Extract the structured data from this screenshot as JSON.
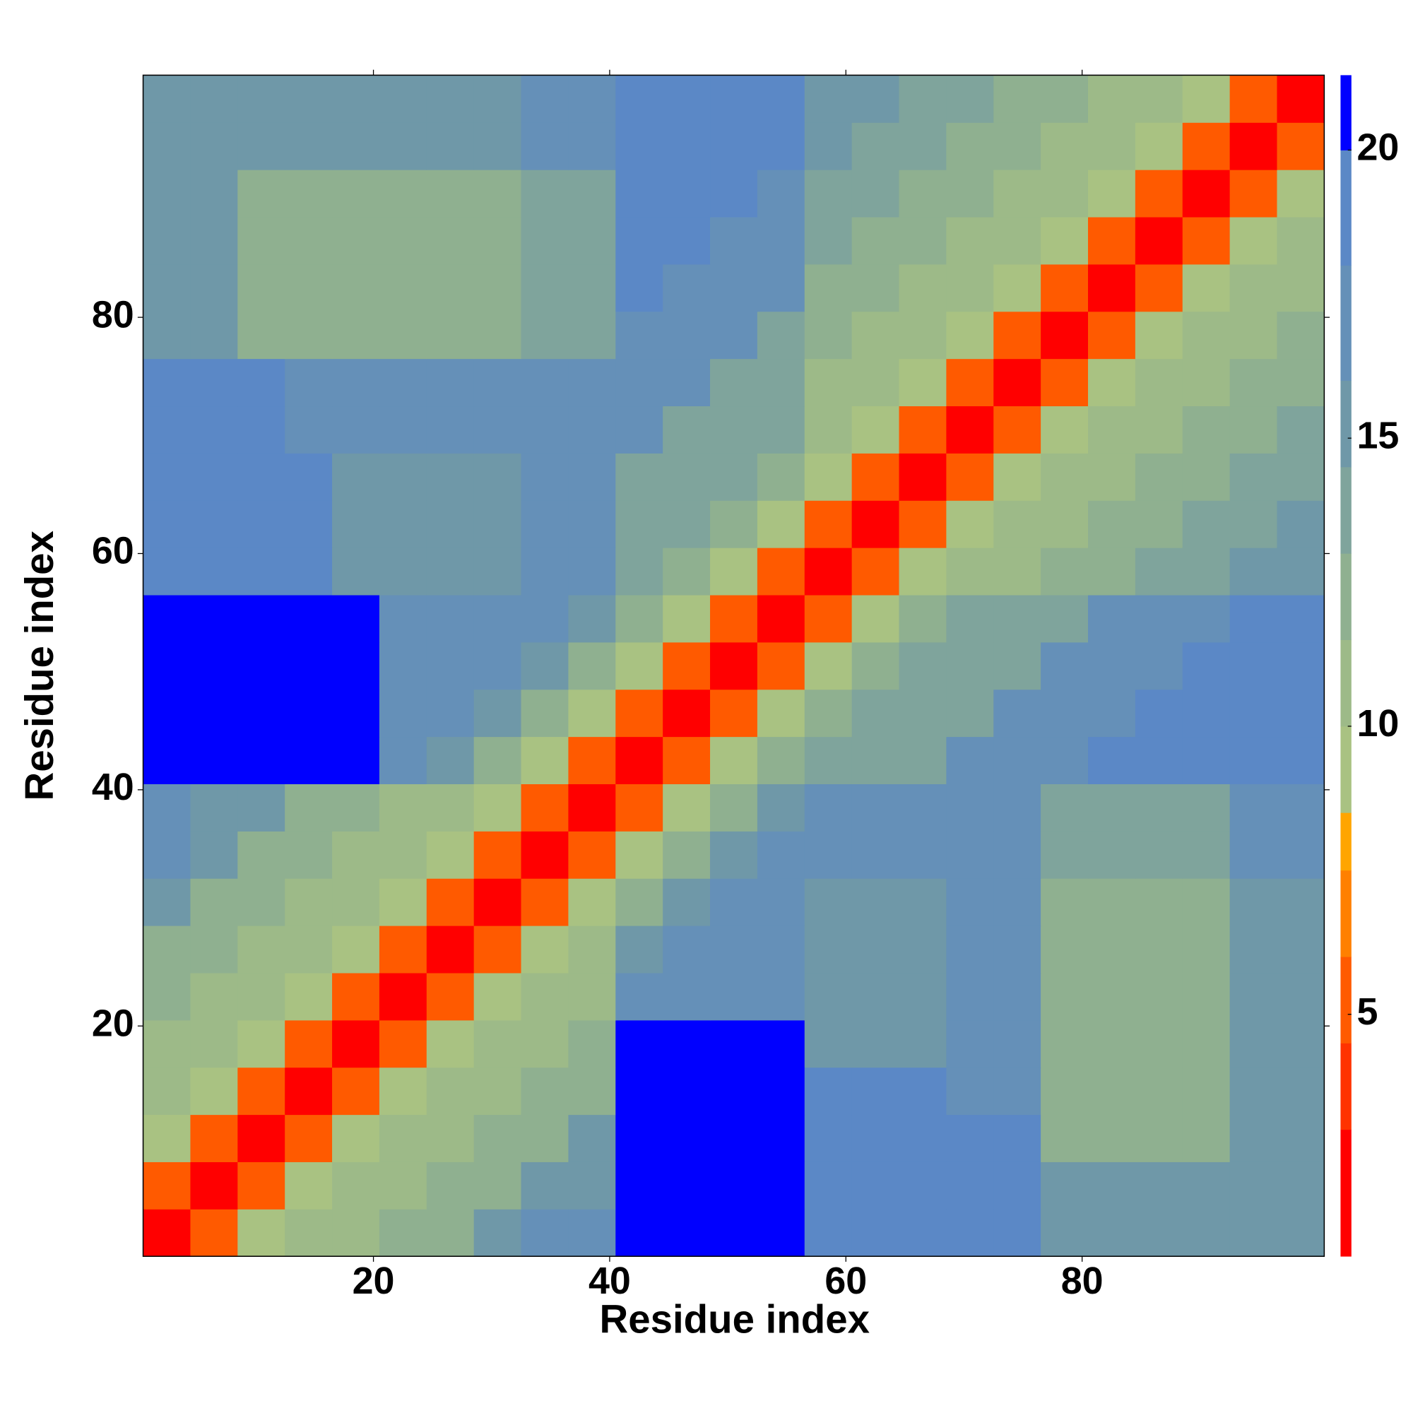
{
  "chart_data": {
    "type": "heatmap",
    "x_label": "Residue index",
    "y_label": "Residue index",
    "xbins": [
      0.5,
      4.5,
      8.5,
      12.5,
      16.5,
      20.5,
      24.5,
      28.5,
      32.5,
      36.5,
      40.5,
      44.5,
      48.5,
      52.5,
      56.5,
      60.5,
      64.5,
      68.5,
      72.5,
      76.5,
      80.5,
      84.5,
      88.5,
      92.5,
      96.5,
      100.5
    ],
    "ybins": [
      0.5,
      4.5,
      8.5,
      12.5,
      16.5,
      20.5,
      24.5,
      28.5,
      32.5,
      36.5,
      40.5,
      44.5,
      48.5,
      52.5,
      56.5,
      60.5,
      64.5,
      68.5,
      72.5,
      76.5,
      80.5,
      84.5,
      88.5,
      92.5,
      96.5,
      100.5
    ],
    "values": [
      [
        2,
        6,
        9,
        11,
        11,
        13,
        13,
        15,
        17,
        17,
        21,
        21,
        21,
        21,
        19,
        19,
        19,
        19,
        19,
        15,
        15,
        15,
        15,
        16,
        16
      ],
      [
        6,
        2,
        6,
        9,
        11,
        11,
        13,
        13,
        15,
        15,
        21,
        21,
        21,
        21,
        19,
        19,
        19,
        19,
        19,
        15,
        15,
        15,
        15,
        16,
        16
      ],
      [
        9,
        6,
        2,
        6,
        9,
        11,
        11,
        13,
        13,
        15,
        21,
        21,
        21,
        21,
        19,
        19,
        19,
        19,
        19,
        12,
        12,
        12,
        12,
        16,
        16
      ],
      [
        11,
        9,
        6,
        2,
        6,
        9,
        11,
        11,
        13,
        13,
        21,
        21,
        21,
        21,
        19,
        19,
        19,
        17,
        17,
        12,
        12,
        12,
        12,
        16,
        16
      ],
      [
        11,
        11,
        9,
        6,
        2,
        6,
        9,
        11,
        11,
        13,
        21,
        21,
        21,
        21,
        16,
        16,
        16,
        17,
        17,
        12,
        12,
        12,
        12,
        15,
        15
      ],
      [
        13,
        11,
        11,
        9,
        6,
        2,
        6,
        9,
        11,
        11,
        18,
        18,
        18,
        18,
        16,
        16,
        16,
        17,
        17,
        12,
        12,
        12,
        12,
        15,
        15
      ],
      [
        13,
        13,
        11,
        11,
        9,
        6,
        2,
        6,
        9,
        11,
        15,
        18,
        18,
        18,
        16,
        16,
        16,
        17,
        17,
        12,
        12,
        12,
        12,
        15,
        15
      ],
      [
        15,
        13,
        13,
        11,
        11,
        9,
        6,
        2,
        6,
        9,
        12,
        15,
        18,
        18,
        16,
        16,
        16,
        17,
        17,
        12,
        12,
        12,
        12,
        15,
        15
      ],
      [
        17,
        15,
        13,
        13,
        11,
        11,
        9,
        6,
        2,
        6,
        9,
        12,
        15,
        18,
        18,
        18,
        18,
        18,
        18,
        14,
        14,
        14,
        14,
        17,
        17
      ],
      [
        17,
        15,
        15,
        13,
        13,
        11,
        11,
        9,
        6,
        2,
        6,
        9,
        12,
        15,
        18,
        18,
        18,
        18,
        18,
        14,
        14,
        14,
        14,
        17,
        17
      ],
      [
        21,
        21,
        21,
        21,
        21,
        18,
        15,
        12,
        9,
        6,
        2,
        6,
        9,
        12,
        14,
        14,
        14,
        17,
        17,
        17,
        20,
        20,
        20,
        20,
        20
      ],
      [
        21,
        21,
        21,
        21,
        21,
        18,
        18,
        15,
        12,
        9,
        6,
        2,
        6,
        9,
        12,
        14,
        14,
        14,
        17,
        17,
        17,
        20,
        20,
        20,
        20
      ],
      [
        21,
        21,
        21,
        21,
        21,
        18,
        18,
        18,
        15,
        12,
        9,
        6,
        2,
        6,
        9,
        12,
        14,
        14,
        14,
        17,
        17,
        17,
        20,
        20,
        20
      ],
      [
        21,
        21,
        21,
        21,
        21,
        18,
        18,
        18,
        18,
        15,
        12,
        9,
        6,
        2,
        6,
        9,
        12,
        14,
        14,
        14,
        17,
        17,
        17,
        20,
        20
      ],
      [
        19,
        19,
        19,
        19,
        16,
        16,
        16,
        16,
        18,
        18,
        14,
        12,
        9,
        6,
        2,
        6,
        9,
        11,
        11,
        13,
        13,
        14,
        14,
        16,
        16
      ],
      [
        19,
        19,
        19,
        19,
        16,
        16,
        16,
        16,
        18,
        18,
        14,
        14,
        12,
        9,
        6,
        2,
        6,
        9,
        11,
        11,
        13,
        13,
        14,
        14,
        16
      ],
      [
        19,
        19,
        19,
        19,
        16,
        16,
        16,
        16,
        18,
        18,
        14,
        14,
        14,
        12,
        9,
        6,
        2,
        6,
        9,
        11,
        11,
        13,
        13,
        14,
        14
      ],
      [
        19,
        19,
        19,
        17,
        17,
        17,
        17,
        17,
        18,
        18,
        17,
        14,
        14,
        14,
        11,
        9,
        6,
        2,
        6,
        9,
        11,
        11,
        13,
        13,
        14
      ],
      [
        19,
        19,
        19,
        17,
        17,
        17,
        17,
        17,
        18,
        18,
        17,
        17,
        14,
        14,
        11,
        11,
        9,
        6,
        2,
        6,
        9,
        11,
        11,
        13,
        13
      ],
      [
        15,
        15,
        12,
        12,
        12,
        12,
        12,
        12,
        14,
        14,
        17,
        17,
        17,
        14,
        13,
        11,
        11,
        9,
        6,
        2,
        6,
        9,
        11,
        11,
        13
      ],
      [
        15,
        15,
        12,
        12,
        12,
        12,
        12,
        12,
        14,
        14,
        20,
        17,
        17,
        17,
        13,
        13,
        11,
        11,
        9,
        6,
        2,
        6,
        9,
        11,
        11
      ],
      [
        15,
        15,
        12,
        12,
        12,
        12,
        12,
        12,
        14,
        14,
        20,
        20,
        17,
        17,
        14,
        13,
        13,
        11,
        11,
        9,
        6,
        2,
        6,
        9,
        11
      ],
      [
        15,
        15,
        12,
        12,
        12,
        12,
        12,
        12,
        14,
        14,
        20,
        20,
        20,
        17,
        14,
        14,
        13,
        13,
        11,
        11,
        9,
        6,
        2,
        6,
        9
      ],
      [
        16,
        16,
        16,
        16,
        15,
        15,
        15,
        15,
        17,
        17,
        20,
        20,
        20,
        20,
        16,
        14,
        14,
        13,
        13,
        11,
        11,
        9,
        6,
        2,
        6
      ],
      [
        16,
        16,
        16,
        16,
        15,
        15,
        15,
        15,
        17,
        17,
        20,
        20,
        20,
        20,
        16,
        16,
        14,
        14,
        13,
        13,
        11,
        11,
        9,
        6,
        2
      ]
    ],
    "xlim": [
      0.5,
      100.5
    ],
    "ylim": [
      0.5,
      100.5
    ],
    "xticks": [
      20,
      40,
      60,
      80
    ],
    "yticks": [
      20,
      40,
      60,
      80
    ],
    "colorbar": {
      "lim": [
        0.8,
        21.3
      ],
      "ticks": [
        5,
        10,
        15,
        20
      ],
      "bounds": [
        0.8,
        3,
        4.5,
        6,
        7.5,
        8.5,
        10,
        11.5,
        13,
        14.5,
        16,
        18,
        20,
        21.3
      ],
      "colors": [
        "#ff0000",
        "#ff3300",
        "#ff5a00",
        "#ff8000",
        "#ffa500",
        "#a9c282",
        "#9dba88",
        "#8fb090",
        "#7fa49c",
        "#6f98a8",
        "#6590b8",
        "#5b88c6",
        "#0000ff"
      ]
    }
  }
}
